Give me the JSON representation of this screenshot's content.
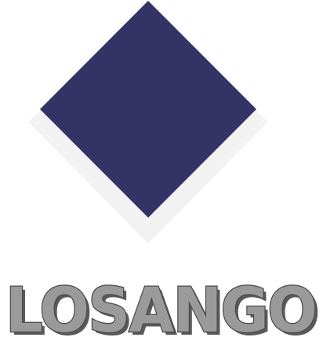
{
  "brand": {
    "name": "LOSANGO"
  },
  "colors": {
    "diamond": "#333366",
    "shadow": "#f2f2f2",
    "wordmark_fill": "#9a9a9a",
    "wordmark_outline": "#4a4a4a",
    "wordmark_shadow": "#5a5a5a"
  },
  "icons": {
    "logo": "diamond-icon"
  }
}
